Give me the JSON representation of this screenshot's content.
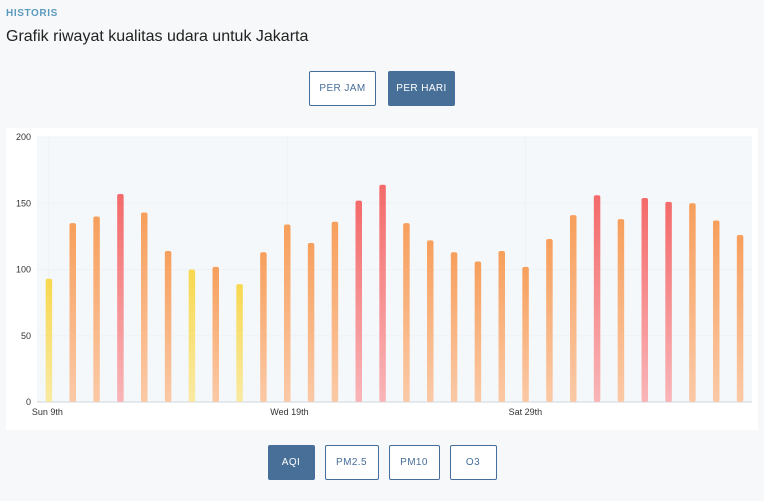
{
  "header": {
    "section_label": "HISTORIS",
    "subtitle": "Grafik riwayat kualitas udara untuk Jakarta"
  },
  "time_toggle": [
    {
      "label": "PER JAM",
      "active": false
    },
    {
      "label": "PER HARI",
      "active": true
    }
  ],
  "metric_tabs": [
    {
      "label": "AQI",
      "active": true
    },
    {
      "label": "PM2.5",
      "active": false
    },
    {
      "label": "PM10",
      "active": false
    },
    {
      "label": "O3",
      "active": false
    }
  ],
  "colors": {
    "accent": "#476f98",
    "moderate_top": "#f8d84f",
    "moderate_bottom": "#f9eaa3",
    "usg_top": "#f79f5c",
    "usg_bottom": "#fbc9a6",
    "unhealthy_top": "#f46a6a",
    "unhealthy_bottom": "#f9b5b8"
  },
  "chart_data": {
    "type": "bar",
    "title": "",
    "xlabel": "",
    "ylabel": "",
    "ylim": [
      0,
      200
    ],
    "yticks": [
      0,
      50,
      100,
      150,
      200
    ],
    "xtick_labels": [
      {
        "index": 0,
        "label": "Sun 9th"
      },
      {
        "index": 10,
        "label": "Wed 19th"
      },
      {
        "index": 20,
        "label": "Sat 29th"
      }
    ],
    "grid": true,
    "series": [
      {
        "values": [
          93,
          135,
          140,
          157,
          143,
          114,
          100,
          102,
          89,
          113,
          134,
          120,
          136,
          152,
          164,
          135,
          122,
          113,
          106,
          114,
          102,
          123,
          141,
          156,
          138,
          154,
          151,
          150,
          137,
          126
        ]
      }
    ]
  }
}
